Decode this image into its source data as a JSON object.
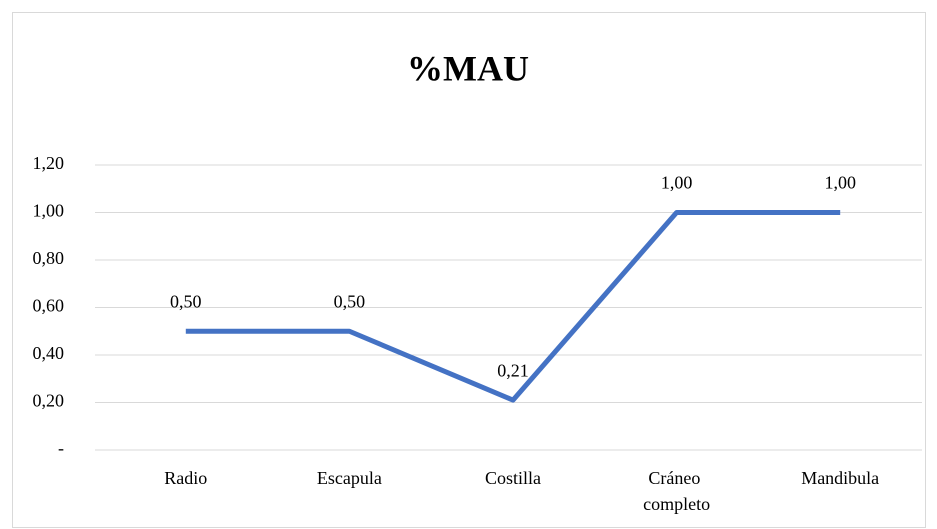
{
  "chart_data": {
    "type": "line",
    "title": "%MAU",
    "categories": [
      "Radio",
      "Escapula",
      "Costilla",
      "Cráneo completo",
      "Mandibula"
    ],
    "values": [
      0.5,
      0.5,
      0.21,
      1,
      1
    ],
    "value_labels": [
      "0,50",
      "0,50",
      "0,21",
      "1,00",
      "1,00"
    ],
    "color": "#4472c4",
    "ylim": [
      0,
      1.2
    ],
    "yticks": [
      {
        "value": 0,
        "label": "-"
      },
      {
        "value": 0.2,
        "label": "0,20"
      },
      {
        "value": 0.4,
        "label": "0,40"
      },
      {
        "value": 0.6,
        "label": "0,60"
      },
      {
        "value": 0.8,
        "label": "0,80"
      },
      {
        "value": 1,
        "label": "1,00"
      },
      {
        "value": 1.2,
        "label": "1,20"
      }
    ],
    "grid": true
  }
}
